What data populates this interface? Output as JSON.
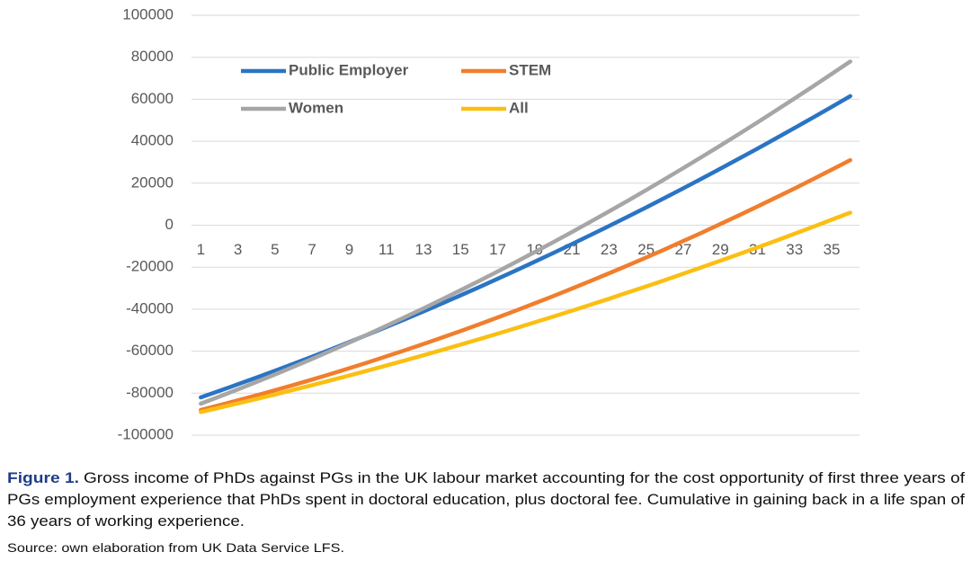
{
  "chart_data": {
    "type": "line",
    "x": [
      1,
      2,
      3,
      4,
      5,
      6,
      7,
      8,
      9,
      10,
      11,
      12,
      13,
      14,
      15,
      16,
      17,
      18,
      19,
      20,
      21,
      22,
      23,
      24,
      25,
      26,
      27,
      28,
      29,
      30,
      31,
      32,
      33,
      34,
      35,
      36
    ],
    "xlim": [
      0.5,
      36.5
    ],
    "xticks": [
      1,
      3,
      5,
      7,
      9,
      11,
      13,
      15,
      17,
      19,
      21,
      23,
      25,
      27,
      29,
      31,
      33,
      35
    ],
    "ylim": [
      -100000,
      100000
    ],
    "yticks": [
      -100000,
      -80000,
      -60000,
      -40000,
      -20000,
      0,
      20000,
      40000,
      60000,
      80000,
      100000
    ],
    "grid": true,
    "legend": "upper-left",
    "series": [
      {
        "name": "Public Employer",
        "color": "#2b74c4",
        "values": [
          -82000,
          -78920,
          -75780,
          -72580,
          -69320,
          -66000,
          -62620,
          -59180,
          -55680,
          -52120,
          -48500,
          -44820,
          -41080,
          -37280,
          -33420,
          -29500,
          -25520,
          -21480,
          -17380,
          -13220,
          -9000,
          -4720,
          -380,
          4020,
          8480,
          13000,
          17580,
          22220,
          26920,
          31680,
          36500,
          41380,
          46320,
          51320,
          56380,
          61500
        ]
      },
      {
        "name": "STEM",
        "color": "#f07e2d",
        "values": [
          -88000,
          -85756,
          -83444,
          -81064,
          -78616,
          -76100,
          -73516,
          -70864,
          -68144,
          -65356,
          -62500,
          -59576,
          -56584,
          -53524,
          -50396,
          -47200,
          -43936,
          -40604,
          -37204,
          -33736,
          -30200,
          -26596,
          -22924,
          -19184,
          -15376,
          -11500,
          -7556,
          -3544,
          536,
          4684,
          8900,
          13184,
          17536,
          21956,
          26444,
          31000
        ]
      },
      {
        "name": "Women",
        "color": "#a6a6a6",
        "values": [
          -85000,
          -81635,
          -78194,
          -74677,
          -71084,
          -67415,
          -63670,
          -59849,
          -55952,
          -51979,
          -47930,
          -43805,
          -39604,
          -35327,
          -30974,
          -26545,
          -22040,
          -17459,
          -12802,
          -8069,
          -3260,
          1625,
          6586,
          11623,
          16736,
          21925,
          27190,
          32531,
          37948,
          43441,
          49010,
          54655,
          60376,
          66173,
          72046,
          77995
        ]
      },
      {
        "name": "All",
        "color": "#fbbf12",
        "values": [
          -89000,
          -86966,
          -84892,
          -82778,
          -80624,
          -78430,
          -76196,
          -73922,
          -71608,
          -69254,
          -66860,
          -64426,
          -61952,
          -59438,
          -56884,
          -54290,
          -51656,
          -48982,
          -46268,
          -43514,
          -40720,
          -37886,
          -35012,
          -32098,
          -29144,
          -26150,
          -23116,
          -20042,
          -16928,
          -13774,
          -10580,
          -7346,
          -4072,
          -758,
          2596,
          5990
        ]
      }
    ]
  },
  "caption": {
    "label": "Figure 1.",
    "lines": [
      "Gross income of PhDs against PGs in the UK labour market accounting for the cost opportunity of first three years of",
      "PGs employment experience that PhDs spent in doctoral education, plus doctoral fee. Cumulative in gaining back in a life span of",
      "36 years of working experience."
    ]
  },
  "source": "Source: own elaboration from UK Data Service LFS."
}
